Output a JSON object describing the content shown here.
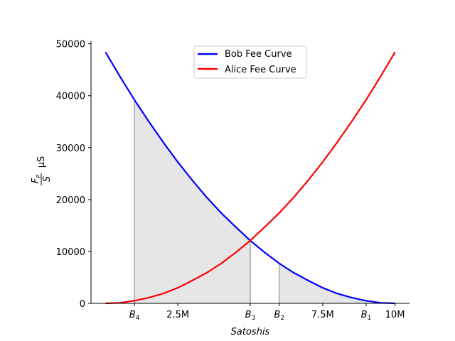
{
  "chart_data": {
    "type": "line",
    "xlabel": "Satoshis",
    "ylabel": "μS",
    "ylabel_fraction": {
      "numerator": "F",
      "numerator_sub": "P",
      "denominator": "S"
    },
    "xlim": [
      -500000,
      10500000
    ],
    "ylim": [
      0,
      50500
    ],
    "x_ticks": [
      {
        "value": 1000000,
        "label": "B",
        "sub": "4"
      },
      {
        "value": 2500000,
        "label": "2.5M"
      },
      {
        "value": 5000000,
        "label": "B",
        "sub": "3"
      },
      {
        "value": 6000000,
        "label": "B",
        "sub": "2"
      },
      {
        "value": 7500000,
        "label": "7.5M"
      },
      {
        "value": 9000000,
        "label": "B",
        "sub": "1"
      },
      {
        "value": 10000000,
        "label": "10M"
      }
    ],
    "y_ticks": [
      {
        "value": 0,
        "label": "0"
      },
      {
        "value": 10000,
        "label": "10000"
      },
      {
        "value": 20000,
        "label": "20000"
      },
      {
        "value": 30000,
        "label": "30000"
      },
      {
        "value": 40000,
        "label": "40000"
      },
      {
        "value": 50000,
        "label": "50000"
      }
    ],
    "series": [
      {
        "name": "Bob Fee Curve",
        "color": "#0000ff",
        "x": [
          0,
          500000,
          1000000,
          1500000,
          2000000,
          2500000,
          3000000,
          3500000,
          4000000,
          4500000,
          5000000,
          5500000,
          6000000,
          6500000,
          7000000,
          7500000,
          8000000,
          8500000,
          9000000,
          9500000,
          10000000
        ],
        "y": [
          48400,
          43700,
          39200,
          35000,
          31000,
          27200,
          23700,
          20400,
          17400,
          14700,
          12100,
          9800,
          7700,
          5900,
          4400,
          3000,
          1900,
          1100,
          500,
          100,
          0
        ]
      },
      {
        "name": "Alice Fee Curve",
        "color": "#ff0000",
        "x": [
          0,
          500000,
          1000000,
          1500000,
          2000000,
          2500000,
          3000000,
          3500000,
          4000000,
          4500000,
          5000000,
          5500000,
          6000000,
          6500000,
          7000000,
          7500000,
          8000000,
          8500000,
          9000000,
          9500000,
          10000000
        ],
        "y": [
          0,
          100,
          500,
          1100,
          1900,
          3000,
          4400,
          5900,
          7700,
          9800,
          12100,
          14700,
          17400,
          20400,
          23700,
          27200,
          31000,
          35000,
          39200,
          43700,
          48400
        ]
      }
    ],
    "shaded_regions": [
      {
        "series": "Bob Fee Curve",
        "from": 1000000,
        "to": 5000000,
        "color": "#e6e6e6"
      },
      {
        "series": "Bob Fee Curve",
        "from": 6000000,
        "to": 10000000,
        "color": "#e6e6e6"
      }
    ],
    "vertical_lines": [
      1000000,
      5000000,
      6000000
    ],
    "legend": {
      "placement": "top-center"
    },
    "grid": false
  }
}
